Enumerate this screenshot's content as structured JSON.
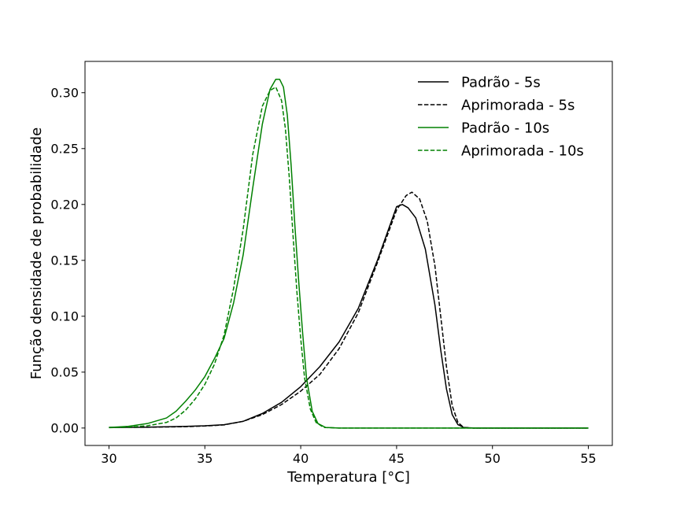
{
  "chart_data": {
    "type": "line",
    "title": "",
    "xlabel": "Temperatura [°C]",
    "ylabel": "Função densidade de probabilidade",
    "xlim": [
      28.75,
      56.25
    ],
    "ylim": [
      -0.0156,
      0.328
    ],
    "x_ticks": [
      30,
      35,
      40,
      45,
      50,
      55
    ],
    "y_ticks": [
      0.0,
      0.05,
      0.1,
      0.15,
      0.2,
      0.25,
      0.3
    ],
    "x_tick_labels": [
      "30",
      "35",
      "40",
      "45",
      "50",
      "55"
    ],
    "y_tick_labels": [
      "0.00",
      "0.05",
      "0.10",
      "0.15",
      "0.20",
      "0.25",
      "0.30"
    ],
    "grid": false,
    "legend_position": "top-right",
    "series": [
      {
        "name": "Padrão - 5s",
        "color": "#000000",
        "dash": "solid",
        "points": [
          [
            30,
            0.0005
          ],
          [
            32,
            0.0008
          ],
          [
            34,
            0.0015
          ],
          [
            35,
            0.002
          ],
          [
            36,
            0.003
          ],
          [
            37,
            0.006
          ],
          [
            38,
            0.013
          ],
          [
            39,
            0.023
          ],
          [
            40,
            0.037
          ],
          [
            41,
            0.055
          ],
          [
            42,
            0.077
          ],
          [
            43,
            0.107
          ],
          [
            44,
            0.15
          ],
          [
            45,
            0.198
          ],
          [
            45.3,
            0.2
          ],
          [
            45.6,
            0.197
          ],
          [
            46,
            0.188
          ],
          [
            46.5,
            0.16
          ],
          [
            47,
            0.11
          ],
          [
            47.3,
            0.07
          ],
          [
            47.6,
            0.035
          ],
          [
            47.9,
            0.012
          ],
          [
            48.2,
            0.003
          ],
          [
            48.5,
            0.0005
          ],
          [
            49,
            0
          ],
          [
            55,
            0
          ]
        ]
      },
      {
        "name": "Aprimorada - 5s",
        "color": "#000000",
        "dash": "dashed",
        "points": [
          [
            30,
            0.0005
          ],
          [
            32,
            0.0007
          ],
          [
            34,
            0.0012
          ],
          [
            35,
            0.0018
          ],
          [
            36,
            0.0028
          ],
          [
            37,
            0.006
          ],
          [
            38,
            0.012
          ],
          [
            39,
            0.021
          ],
          [
            40,
            0.033
          ],
          [
            41,
            0.048
          ],
          [
            42,
            0.071
          ],
          [
            43,
            0.103
          ],
          [
            44,
            0.148
          ],
          [
            45,
            0.195
          ],
          [
            45.5,
            0.208
          ],
          [
            45.8,
            0.211
          ],
          [
            46.2,
            0.205
          ],
          [
            46.6,
            0.185
          ],
          [
            47,
            0.145
          ],
          [
            47.3,
            0.1
          ],
          [
            47.6,
            0.055
          ],
          [
            47.9,
            0.02
          ],
          [
            48.2,
            0.005
          ],
          [
            48.5,
            0.0005
          ],
          [
            49,
            0
          ],
          [
            55,
            0
          ]
        ]
      },
      {
        "name": "Padrão - 10s",
        "color": "#008000",
        "dash": "solid",
        "points": [
          [
            30,
            0.0005
          ],
          [
            31,
            0.0015
          ],
          [
            32,
            0.004
          ],
          [
            33,
            0.009
          ],
          [
            33.5,
            0.015
          ],
          [
            34,
            0.024
          ],
          [
            34.5,
            0.034
          ],
          [
            35,
            0.046
          ],
          [
            35.5,
            0.062
          ],
          [
            36,
            0.08
          ],
          [
            36.5,
            0.112
          ],
          [
            37,
            0.155
          ],
          [
            37.5,
            0.215
          ],
          [
            38,
            0.272
          ],
          [
            38.4,
            0.303
          ],
          [
            38.7,
            0.312
          ],
          [
            38.9,
            0.312
          ],
          [
            39.1,
            0.305
          ],
          [
            39.3,
            0.28
          ],
          [
            39.5,
            0.235
          ],
          [
            39.7,
            0.18
          ],
          [
            39.9,
            0.13
          ],
          [
            40.1,
            0.085
          ],
          [
            40.3,
            0.045
          ],
          [
            40.6,
            0.015
          ],
          [
            40.9,
            0.004
          ],
          [
            41.3,
            0.0005
          ],
          [
            42,
            0
          ],
          [
            55,
            0
          ]
        ]
      },
      {
        "name": "Aprimorada - 10s",
        "color": "#008000",
        "dash": "dashed",
        "points": [
          [
            30,
            0.0003
          ],
          [
            31,
            0.0008
          ],
          [
            32,
            0.002
          ],
          [
            33,
            0.005
          ],
          [
            33.5,
            0.009
          ],
          [
            34,
            0.016
          ],
          [
            34.5,
            0.026
          ],
          [
            35,
            0.039
          ],
          [
            35.5,
            0.057
          ],
          [
            36,
            0.083
          ],
          [
            36.5,
            0.125
          ],
          [
            37,
            0.178
          ],
          [
            37.5,
            0.245
          ],
          [
            38,
            0.288
          ],
          [
            38.4,
            0.302
          ],
          [
            38.7,
            0.305
          ],
          [
            39,
            0.293
          ],
          [
            39.2,
            0.268
          ],
          [
            39.4,
            0.225
          ],
          [
            39.6,
            0.172
          ],
          [
            39.8,
            0.122
          ],
          [
            40,
            0.08
          ],
          [
            40.2,
            0.045
          ],
          [
            40.5,
            0.017
          ],
          [
            40.8,
            0.005
          ],
          [
            41.2,
            0.0005
          ],
          [
            42,
            0
          ],
          [
            55,
            0
          ]
        ]
      }
    ]
  }
}
